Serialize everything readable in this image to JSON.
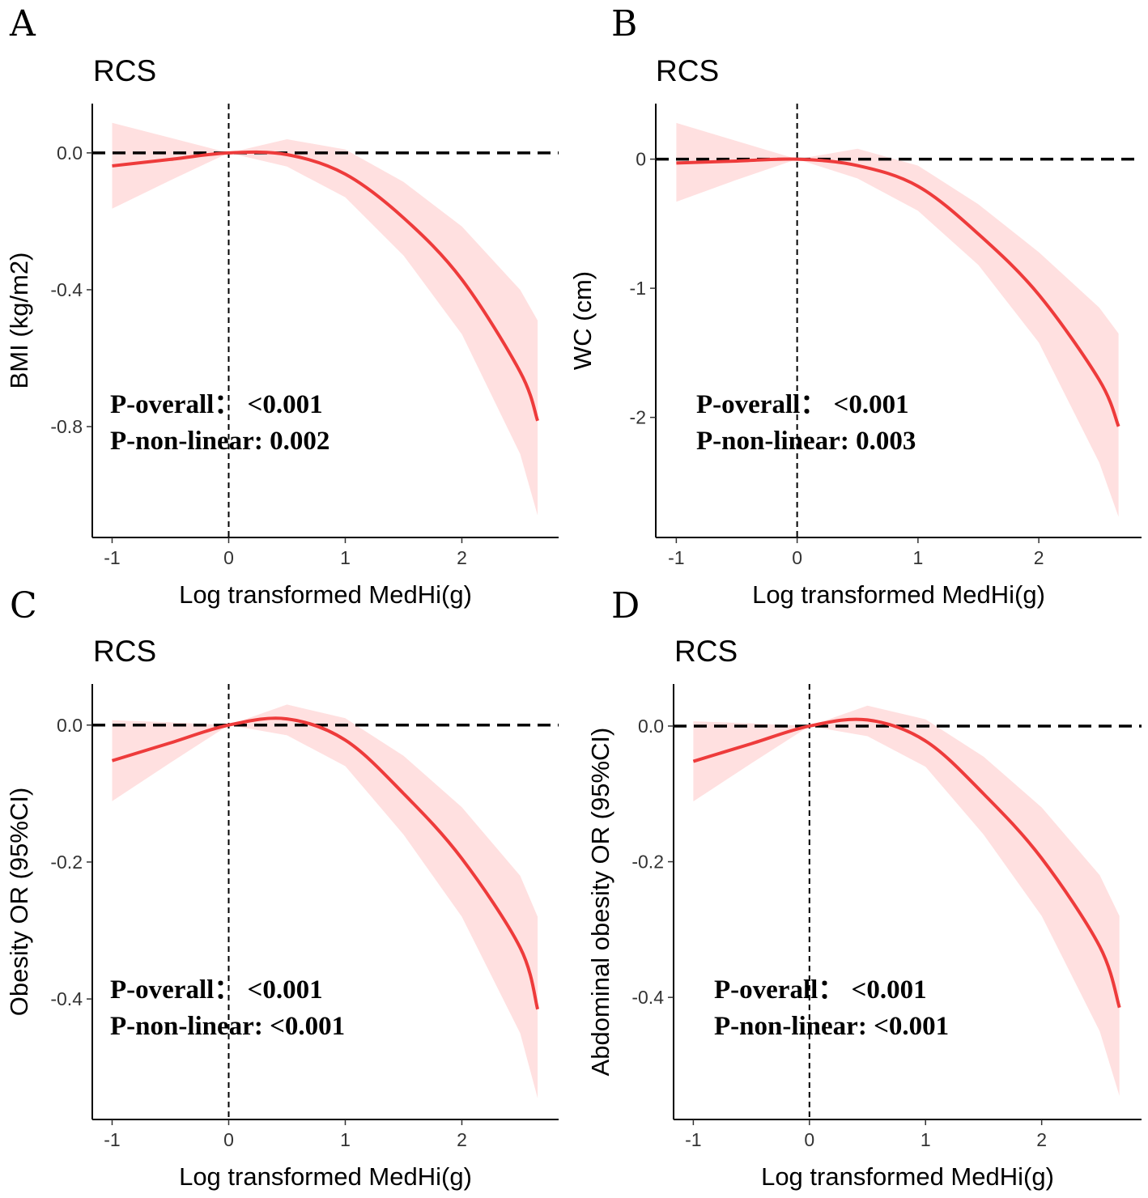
{
  "chart_data": [
    {
      "type": "line",
      "panel_label": "A",
      "title": "RCS",
      "xlabel": "Log transformed MedHi(g)",
      "ylabel": "BMI (kg/m2)",
      "xlim": [
        -1.17,
        2.83
      ],
      "ylim": [
        -1.124,
        0.144
      ],
      "xticks": [
        -1,
        0,
        1,
        2
      ],
      "xtick_labels": [
        "-1",
        "0",
        "1",
        "2"
      ],
      "yticks": [
        0,
        -0.4,
        -0.8
      ],
      "ytick_labels": [
        "0.0",
        "-0.4",
        "-0.8"
      ],
      "reference_lines": {
        "y": 0,
        "x": 0
      },
      "annotations": [
        "P-overall：  <0.001",
        "P-non-linear: 0.002"
      ],
      "x": [
        -1,
        -0.5,
        0,
        0.5,
        1,
        1.5,
        2,
        2.5,
        2.65
      ],
      "series": [
        {
          "name": "estimate",
          "values": [
            -0.038,
            -0.019,
            0,
            -0.005,
            -0.062,
            -0.19,
            -0.37,
            -0.64,
            -0.783
          ]
        },
        {
          "name": "upper_95ci",
          "values": [
            0.088,
            0.044,
            0,
            0.04,
            0.01,
            -0.085,
            -0.215,
            -0.4,
            -0.49
          ]
        },
        {
          "name": "lower_95ci",
          "values": [
            -0.163,
            -0.08,
            0,
            -0.04,
            -0.13,
            -0.3,
            -0.53,
            -0.88,
            -1.06
          ]
        }
      ]
    },
    {
      "type": "line",
      "panel_label": "B",
      "title": "RCS",
      "xlabel": "Log transformed MedHi(g)",
      "ylabel": "WC (cm)",
      "xlim": [
        -1.17,
        2.85
      ],
      "ylim": [
        -2.93,
        0.43
      ],
      "xticks": [
        -1,
        0,
        1,
        2
      ],
      "xtick_labels": [
        "-1",
        "0",
        "1",
        "2"
      ],
      "yticks": [
        0,
        -1,
        -2
      ],
      "ytick_labels": [
        "0",
        "-1",
        "-2"
      ],
      "reference_lines": {
        "y": 0,
        "x": 0
      },
      "annotations": [
        "P-overall：  <0.001",
        "P-non-linear: 0.003"
      ],
      "x": [
        -1,
        -0.5,
        0,
        0.5,
        1,
        1.5,
        2,
        2.5,
        2.66
      ],
      "series": [
        {
          "name": "estimate",
          "values": [
            -0.03,
            -0.015,
            0,
            -0.05,
            -0.21,
            -0.58,
            -1.05,
            -1.71,
            -2.07
          ]
        },
        {
          "name": "upper_95ci",
          "values": [
            0.28,
            0.14,
            0,
            0.08,
            -0.05,
            -0.35,
            -0.72,
            -1.15,
            -1.35
          ]
        },
        {
          "name": "lower_95ci",
          "values": [
            -0.33,
            -0.16,
            0,
            -0.15,
            -0.4,
            -0.82,
            -1.42,
            -2.35,
            -2.77
          ]
        }
      ]
    },
    {
      "type": "line",
      "panel_label": "C",
      "title": "RCS",
      "xlabel": "Log transformed MedHi(g)",
      "ylabel": "Obesity OR (95%CI)",
      "xlim": [
        -1.17,
        2.83
      ],
      "ylim": [
        -0.576,
        0.06
      ],
      "xticks": [
        -1,
        0,
        1,
        2
      ],
      "xtick_labels": [
        "-1",
        "0",
        "1",
        "2"
      ],
      "yticks": [
        0,
        -0.2,
        -0.4
      ],
      "ytick_labels": [
        "0.0",
        "-0.2",
        "-0.4"
      ],
      "reference_lines": {
        "y": 0,
        "x": 0
      },
      "annotations": [
        "P-overall：  <0.001",
        "P-non-linear: <0.001"
      ],
      "x": [
        -1,
        -0.5,
        0,
        0.5,
        1,
        1.5,
        2,
        2.5,
        2.65
      ],
      "series": [
        {
          "name": "estimate",
          "values": [
            -0.052,
            -0.026,
            0,
            0.009,
            -0.022,
            -0.1,
            -0.195,
            -0.325,
            -0.415
          ]
        },
        {
          "name": "upper_95ci",
          "values": [
            0.007,
            0.004,
            0,
            0.03,
            0.01,
            -0.045,
            -0.12,
            -0.22,
            -0.28
          ]
        },
        {
          "name": "lower_95ci",
          "values": [
            -0.111,
            -0.055,
            0,
            -0.015,
            -0.06,
            -0.16,
            -0.28,
            -0.45,
            -0.545
          ]
        }
      ]
    },
    {
      "type": "line",
      "panel_label": "D",
      "title": "RCS",
      "xlabel": "Log transformed MedHi(g)",
      "ylabel": "Abdominal obesity OR (95%CI)",
      "xlim": [
        -1.17,
        2.86
      ],
      "ylim": [
        -0.58,
        0.062
      ],
      "xticks": [
        -1,
        0,
        1,
        2
      ],
      "xtick_labels": [
        "-1",
        "0",
        "1",
        "2"
      ],
      "yticks": [
        0,
        -0.2,
        -0.4
      ],
      "ytick_labels": [
        "0.0",
        "-0.2",
        "-0.4"
      ],
      "reference_lines": {
        "y": 0,
        "x": 0
      },
      "annotations": [
        "P-overall：  <0.001",
        "P-non-linear: <0.001"
      ],
      "x": [
        -1,
        -0.5,
        0,
        0.5,
        1,
        1.5,
        2,
        2.5,
        2.67
      ],
      "series": [
        {
          "name": "estimate",
          "values": [
            -0.052,
            -0.026,
            0,
            0.009,
            -0.022,
            -0.1,
            -0.195,
            -0.325,
            -0.415
          ]
        },
        {
          "name": "upper_95ci",
          "values": [
            0.007,
            0.004,
            0,
            0.03,
            0.01,
            -0.045,
            -0.12,
            -0.22,
            -0.28
          ]
        },
        {
          "name": "lower_95ci",
          "values": [
            -0.111,
            -0.055,
            0,
            -0.015,
            -0.06,
            -0.16,
            -0.28,
            -0.45,
            -0.545
          ]
        }
      ]
    }
  ],
  "colors": {
    "curve": "#EE3B3B",
    "ci_band": "#FFE0E0",
    "axis": "#000000"
  }
}
